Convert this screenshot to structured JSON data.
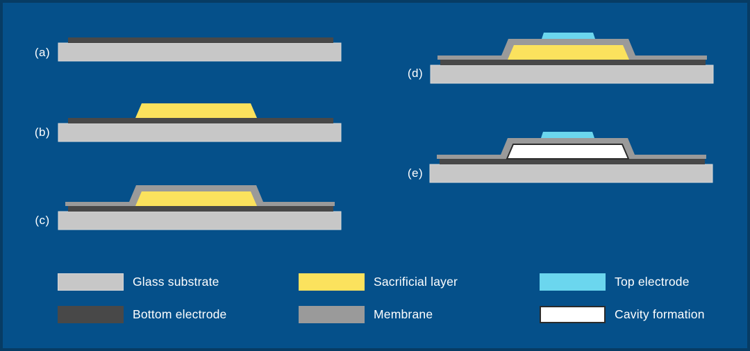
{
  "colors": {
    "background": "#05508A",
    "frame": "#073C64",
    "substrate": "#C7C7C7",
    "substrate_edge": "#D8D8D8",
    "bottom_electrode": "#484848",
    "sacrificial": "#FBE25D",
    "membrane": "#9A9A9A",
    "top_electrode": "#6BD6EE",
    "cavity": "#FFFFFF",
    "cavity_border": "#2B2B2B",
    "text": "#FFFFFF"
  },
  "steps": [
    {
      "id": "a",
      "label": "(a)",
      "layers": [
        "substrate",
        "bottom_electrode"
      ]
    },
    {
      "id": "b",
      "label": "(b)",
      "layers": [
        "substrate",
        "bottom_electrode",
        "sacrificial"
      ]
    },
    {
      "id": "c",
      "label": "(c)",
      "layers": [
        "substrate",
        "bottom_electrode",
        "membrane",
        "sacrificial"
      ]
    },
    {
      "id": "d",
      "label": "(d)",
      "layers": [
        "substrate",
        "bottom_electrode",
        "membrane",
        "sacrificial",
        "top_electrode"
      ]
    },
    {
      "id": "e",
      "label": "(e)",
      "layers": [
        "substrate",
        "bottom_electrode",
        "membrane",
        "cavity",
        "top_electrode"
      ]
    }
  ],
  "legend": {
    "items": [
      {
        "label": "Glass substrate",
        "color_key": "substrate",
        "bordered": false
      },
      {
        "label": "Bottom electrode",
        "color_key": "bottom_electrode",
        "bordered": false
      },
      {
        "label": "Sacrificial layer",
        "color_key": "sacrificial",
        "bordered": false
      },
      {
        "label": "Membrane",
        "color_key": "membrane",
        "bordered": false
      },
      {
        "label": "Top electrode",
        "color_key": "top_electrode",
        "bordered": false
      },
      {
        "label": "Cavity formation",
        "color_key": "cavity",
        "bordered": true
      }
    ]
  }
}
